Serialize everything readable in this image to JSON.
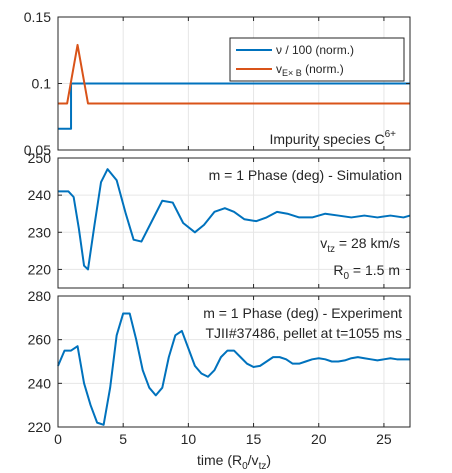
{
  "chart_data": [
    {
      "type": "line",
      "title": "",
      "xlabel": "",
      "ylabel": "",
      "xlim": [
        0,
        27
      ],
      "ylim": [
        0.05,
        0.15
      ],
      "yticks": [
        0.05,
        0.1,
        0.15
      ],
      "ytick_labels": [
        "0.05",
        "0.1",
        "0.15"
      ],
      "grid": true,
      "legend_placement": "top-right",
      "annotation": {
        "text": "Impurity species C",
        "superscript": "6+"
      },
      "series": [
        {
          "name": "ν / 100 (norm.)",
          "color": "#0072BD",
          "x": [
            0,
            1.0,
            1.0,
            27
          ],
          "y": [
            0.066,
            0.066,
            0.1,
            0.1
          ]
        },
        {
          "name": "v_{E× B} (norm.)",
          "color": "#D95319",
          "x": [
            0,
            0.7,
            1.5,
            2.3,
            27
          ],
          "y": [
            0.085,
            0.085,
            0.129,
            0.085,
            0.085
          ]
        }
      ],
      "legend": [
        {
          "base": "ν / 100 (norm.)",
          "sub": ""
        },
        {
          "base": "v",
          "sub": "E× B",
          "rest": " (norm.)"
        }
      ]
    },
    {
      "type": "line",
      "title": "m = 1 Phase (deg) - Simulation",
      "xlabel": "",
      "ylabel": "",
      "xlim": [
        0,
        27
      ],
      "ylim": [
        215,
        250
      ],
      "yticks": [
        220,
        230,
        240,
        250
      ],
      "ytick_labels": [
        "220",
        "230",
        "240",
        "250"
      ],
      "grid": true,
      "annotations": [
        {
          "base": "v",
          "sub": "tz",
          "rest": " = 28 km/s"
        },
        {
          "base": "R",
          "sub": "0",
          "rest": " = 1.5 m"
        }
      ],
      "series": [
        {
          "name": "",
          "color": "#0072BD",
          "x": [
            0,
            0.8,
            1.2,
            1.6,
            2.0,
            2.3,
            2.8,
            3.3,
            3.8,
            4.5,
            5.2,
            5.8,
            6.4,
            7.2,
            8.0,
            8.8,
            9.6,
            10.5,
            11.2,
            12.0,
            12.8,
            13.5,
            14.3,
            15.2,
            16.0,
            16.8,
            17.6,
            18.5,
            19.5,
            20.5,
            21.5,
            22.5,
            23.5,
            24.5,
            25.5,
            26.5,
            27
          ],
          "y": [
            241,
            241,
            239.5,
            231,
            221,
            220,
            232,
            243.5,
            247,
            244,
            235,
            228,
            227.5,
            233,
            238.5,
            238,
            232.5,
            230,
            232,
            235.5,
            236.5,
            235.5,
            233.5,
            233,
            234,
            235.5,
            235,
            234,
            234,
            235,
            234.5,
            234,
            234.5,
            234,
            234.5,
            234,
            234.5
          ]
        }
      ]
    },
    {
      "type": "line",
      "title": "m = 1 Phase (deg) - Experiment",
      "subtitle": "TJII#37486, pellet at t=1055 ms",
      "xlabel": "time (R_0/v_tz)",
      "ylabel": "",
      "xlim": [
        0,
        27
      ],
      "ylim": [
        220,
        280
      ],
      "xticks": [
        0,
        5,
        10,
        15,
        20,
        25
      ],
      "xtick_labels": [
        "0",
        "5",
        "10",
        "15",
        "20",
        "25"
      ],
      "yticks": [
        220,
        240,
        260,
        280
      ],
      "ytick_labels": [
        "220",
        "240",
        "260",
        "280"
      ],
      "grid": true,
      "xlabel_parts": {
        "a": "time (R",
        "sub1": "0",
        "b": "/v",
        "sub2": "tz",
        "c": ")"
      },
      "series": [
        {
          "name": "",
          "color": "#0072BD",
          "x": [
            0,
            0.5,
            1.0,
            1.5,
            2.0,
            2.5,
            3.0,
            3.5,
            4.0,
            4.5,
            5.0,
            5.5,
            6.0,
            6.5,
            7.0,
            7.5,
            8.0,
            8.5,
            9.0,
            9.5,
            10.0,
            10.5,
            11.0,
            11.5,
            12.0,
            12.5,
            13.0,
            13.5,
            14.0,
            14.5,
            15.0,
            15.5,
            16.0,
            16.5,
            17.0,
            17.5,
            18.0,
            18.5,
            19.0,
            19.5,
            20.0,
            20.5,
            21.0,
            21.5,
            22.0,
            22.5,
            23.0,
            23.5,
            24.0,
            24.5,
            25.0,
            25.5,
            26.0,
            26.5,
            27.0
          ],
          "y": [
            248,
            255,
            255,
            257,
            240,
            230,
            222,
            221,
            238,
            262,
            272,
            272,
            260,
            246,
            238,
            234.5,
            238,
            252,
            262,
            264,
            256,
            248,
            244.5,
            243,
            246,
            252,
            255,
            255,
            252,
            249,
            247.5,
            248,
            250,
            252,
            252,
            251,
            249,
            249,
            250,
            251,
            251.5,
            251,
            250,
            250,
            250.5,
            251.5,
            252,
            251.5,
            251,
            250.5,
            251,
            251.5,
            251,
            251,
            251
          ]
        }
      ]
    }
  ]
}
